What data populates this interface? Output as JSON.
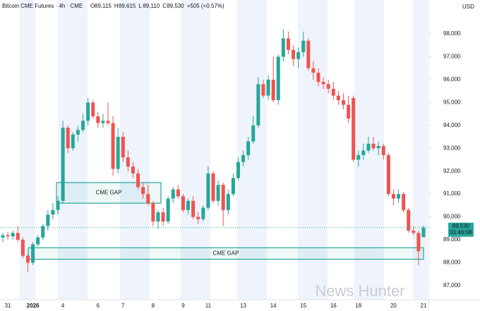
{
  "chart_data": {
    "type": "candlestick",
    "title": "Bitcoin CME Futures · 4h · CME",
    "ohlc_header": [
      {
        "key": "O",
        "text": "89,115"
      },
      {
        "key": "H",
        "text": "89,615"
      },
      {
        "key": "L",
        "text": "89,110"
      },
      {
        "key": "C",
        "text": "89,530"
      }
    ],
    "change": "+505 (+0.57%)",
    "currency": "USD",
    "last_price_label": "89,530",
    "countdown": "01:46:08",
    "watermark": "News Hunter",
    "up_color": "#26a69a",
    "down_color": "#ef5350",
    "categories": [
      null,
      "31",
      null,
      null,
      null,
      null,
      "2026",
      null,
      null,
      null,
      null,
      null,
      "4",
      null,
      null,
      null,
      null,
      null,
      null,
      "6",
      null,
      null,
      null,
      null,
      "7",
      null,
      null,
      null,
      null,
      null,
      "8",
      null,
      null,
      null,
      null,
      null,
      "9",
      null,
      null,
      null,
      null,
      "11",
      null,
      null,
      null,
      null,
      null,
      null,
      "13",
      null,
      null,
      null,
      null,
      null,
      "14",
      null,
      null,
      null,
      null,
      null,
      "15",
      null,
      null,
      null,
      null,
      null,
      "16",
      null,
      null,
      null,
      null,
      "18",
      null,
      null,
      null,
      null,
      null,
      null,
      "20",
      null,
      null,
      null,
      null,
      null,
      "21"
    ],
    "open": [
      89100,
      89200,
      89150,
      89300,
      89000,
      88300,
      88000,
      88800,
      89100,
      89600,
      90100,
      90300,
      90700,
      93900,
      93000,
      93600,
      93800,
      94200,
      95000,
      94400,
      94100,
      94200,
      94100,
      92100,
      93500,
      92600,
      92200,
      91900,
      91300,
      91000,
      90600,
      89800,
      90200,
      89800,
      90800,
      91200,
      90900,
      90300,
      90700,
      90000,
      89900,
      90400,
      91900,
      90700,
      91400,
      90300,
      91000,
      91700,
      92400,
      92700,
      93300,
      94000,
      95800,
      95300,
      96000,
      95100,
      97000,
      97800,
      97300,
      96900,
      97200,
      97700,
      96500,
      96300,
      95900,
      95800,
      95600,
      95300,
      95100,
      94900,
      95200,
      92500,
      92700,
      92900,
      93200,
      93000,
      93100,
      92700,
      91000,
      90800,
      91000,
      90300,
      89400,
      89300,
      89115
    ],
    "high": [
      89300,
      89350,
      89400,
      89600,
      89100,
      88400,
      88900,
      89200,
      89700,
      90300,
      90600,
      90900,
      94200,
      94000,
      93700,
      94000,
      94500,
      95200,
      95100,
      94600,
      94500,
      95000,
      94400,
      93900,
      93700,
      92900,
      92400,
      92100,
      91500,
      91400,
      90700,
      90300,
      90400,
      90900,
      91300,
      91400,
      91000,
      90800,
      90900,
      90200,
      90500,
      92200,
      92000,
      91600,
      91500,
      91200,
      91900,
      92600,
      92900,
      93500,
      94400,
      96100,
      96000,
      96200,
      97000,
      97100,
      98200,
      98100,
      97500,
      97400,
      98100,
      97800,
      96800,
      96500,
      96100,
      96000,
      95900,
      95500,
      95400,
      95300,
      95300,
      92900,
      93200,
      93500,
      93500,
      93300,
      93200,
      92800,
      91200,
      91200,
      91100,
      90400,
      89600,
      89400,
      89615
    ],
    "low": [
      88900,
      89000,
      89000,
      88900,
      88200,
      87600,
      87900,
      88700,
      89000,
      89400,
      89900,
      90100,
      90600,
      92800,
      92900,
      93300,
      93700,
      94000,
      94300,
      93900,
      93900,
      94000,
      91800,
      91900,
      92400,
      92000,
      91700,
      91200,
      90800,
      90500,
      89600,
      89500,
      89600,
      89700,
      90600,
      90800,
      90200,
      90100,
      89900,
      89700,
      89800,
      90300,
      90600,
      90500,
      89600,
      90100,
      90900,
      91600,
      92200,
      92500,
      93200,
      93900,
      95200,
      95100,
      95000,
      94900,
      96800,
      97100,
      96600,
      96500,
      97000,
      96400,
      96000,
      95700,
      95600,
      95400,
      95100,
      94900,
      94700,
      94100,
      92400,
      92200,
      92500,
      92800,
      92900,
      92700,
      92500,
      90900,
      90500,
      90600,
      90200,
      89300,
      89200,
      87900,
      89110
    ],
    "close": [
      89200,
      89150,
      89300,
      89000,
      88300,
      88000,
      88800,
      89100,
      89600,
      90100,
      90300,
      90700,
      93900,
      93000,
      93600,
      93800,
      94200,
      95000,
      94400,
      94100,
      94200,
      94100,
      92100,
      93500,
      92600,
      92200,
      91900,
      91300,
      91000,
      90600,
      89800,
      90200,
      89800,
      90800,
      91200,
      90900,
      90300,
      90700,
      90000,
      89900,
      90400,
      91900,
      90700,
      91400,
      90300,
      91000,
      91700,
      92400,
      92700,
      93300,
      94000,
      95800,
      95300,
      96000,
      95100,
      97000,
      97800,
      97300,
      96900,
      97200,
      97700,
      96500,
      96300,
      95900,
      95800,
      95600,
      95300,
      95100,
      94900,
      94300,
      92500,
      92700,
      92900,
      93200,
      93000,
      93100,
      92700,
      91000,
      90800,
      91000,
      90300,
      89400,
      89300,
      88500,
      89530
    ],
    "gaps": [
      {
        "label": "CME GAP",
        "top": 91500,
        "bottom": 90600
      },
      {
        "label": "CME GAP",
        "top": 88650,
        "bottom": 88150
      }
    ],
    "ylim": [
      86380,
      99480
    ],
    "yticks": [
      {
        "value": 87000,
        "label": "87,000"
      },
      {
        "value": 88000,
        "label": "88,000"
      },
      {
        "value": 89000,
        "label": "89,000"
      },
      {
        "value": 90000,
        "label": "90,000"
      },
      {
        "value": 91000,
        "label": "91,000"
      },
      {
        "value": 92000,
        "label": "92,000"
      },
      {
        "value": 93000,
        "label": "93,000"
      },
      {
        "value": 94000,
        "label": "94,000"
      },
      {
        "value": 95000,
        "label": "95,000"
      },
      {
        "value": 96000,
        "label": "96,000"
      },
      {
        "value": 97000,
        "label": "97,000"
      },
      {
        "value": 98000,
        "label": "98,000"
      }
    ]
  }
}
